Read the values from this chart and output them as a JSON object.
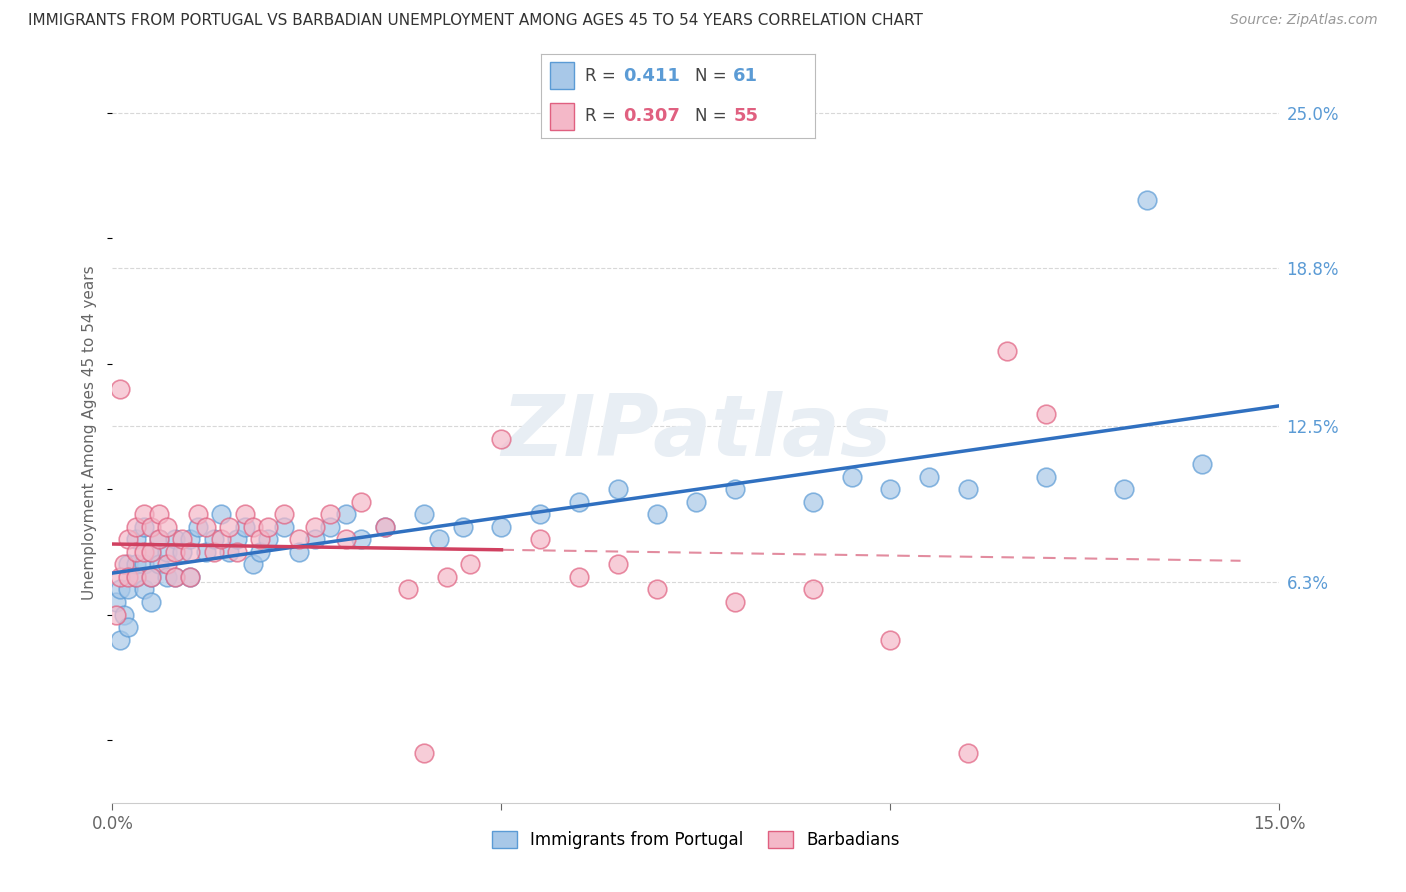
{
  "title": "IMMIGRANTS FROM PORTUGAL VS BARBADIAN UNEMPLOYMENT AMONG AGES 45 TO 54 YEARS CORRELATION CHART",
  "source": "Source: ZipAtlas.com",
  "ylabel": "Unemployment Among Ages 45 to 54 years",
  "xlim": [
    0.0,
    0.15
  ],
  "ylim": [
    -0.025,
    0.27
  ],
  "ytick_labels_right": [
    "25.0%",
    "18.8%",
    "12.5%",
    "6.3%"
  ],
  "ytick_vals_right": [
    0.25,
    0.188,
    0.125,
    0.063
  ],
  "R_blue": 0.411,
  "N_blue": 61,
  "R_pink": 0.307,
  "N_pink": 55,
  "blue_color": "#a8c8e8",
  "blue_edge_color": "#5b9bd5",
  "pink_color": "#f4b8c8",
  "pink_edge_color": "#e06080",
  "blue_line_color": "#3070c0",
  "pink_line_color": "#d04060",
  "watermark_color": "#e8eef4",
  "grid_color": "#d8d8d8",
  "blue_scatter_x": [
    0.0005,
    0.001,
    0.001,
    0.0015,
    0.002,
    0.002,
    0.002,
    0.003,
    0.003,
    0.003,
    0.004,
    0.004,
    0.004,
    0.005,
    0.005,
    0.005,
    0.006,
    0.006,
    0.007,
    0.007,
    0.008,
    0.008,
    0.009,
    0.01,
    0.01,
    0.011,
    0.012,
    0.013,
    0.014,
    0.015,
    0.016,
    0.017,
    0.018,
    0.019,
    0.02,
    0.022,
    0.024,
    0.026,
    0.028,
    0.03,
    0.032,
    0.035,
    0.04,
    0.042,
    0.045,
    0.05,
    0.055,
    0.06,
    0.065,
    0.07,
    0.075,
    0.08,
    0.09,
    0.095,
    0.1,
    0.105,
    0.11,
    0.12,
    0.13,
    0.133,
    0.14
  ],
  "blue_scatter_y": [
    0.055,
    0.04,
    0.06,
    0.05,
    0.07,
    0.045,
    0.06,
    0.065,
    0.07,
    0.08,
    0.06,
    0.07,
    0.085,
    0.065,
    0.075,
    0.055,
    0.07,
    0.08,
    0.075,
    0.065,
    0.08,
    0.065,
    0.075,
    0.065,
    0.08,
    0.085,
    0.075,
    0.08,
    0.09,
    0.075,
    0.08,
    0.085,
    0.07,
    0.075,
    0.08,
    0.085,
    0.075,
    0.08,
    0.085,
    0.09,
    0.08,
    0.085,
    0.09,
    0.08,
    0.085,
    0.085,
    0.09,
    0.095,
    0.1,
    0.09,
    0.095,
    0.1,
    0.095,
    0.105,
    0.1,
    0.105,
    0.1,
    0.105,
    0.1,
    0.215,
    0.11
  ],
  "pink_scatter_x": [
    0.0005,
    0.001,
    0.001,
    0.0015,
    0.002,
    0.002,
    0.003,
    0.003,
    0.003,
    0.004,
    0.004,
    0.005,
    0.005,
    0.005,
    0.006,
    0.006,
    0.007,
    0.007,
    0.008,
    0.008,
    0.009,
    0.01,
    0.01,
    0.011,
    0.012,
    0.013,
    0.014,
    0.015,
    0.016,
    0.017,
    0.018,
    0.019,
    0.02,
    0.022,
    0.024,
    0.026,
    0.028,
    0.03,
    0.032,
    0.035,
    0.038,
    0.04,
    0.043,
    0.046,
    0.05,
    0.055,
    0.06,
    0.065,
    0.07,
    0.08,
    0.09,
    0.1,
    0.11,
    0.115,
    0.12
  ],
  "pink_scatter_y": [
    0.05,
    0.065,
    0.14,
    0.07,
    0.08,
    0.065,
    0.075,
    0.085,
    0.065,
    0.09,
    0.075,
    0.085,
    0.065,
    0.075,
    0.08,
    0.09,
    0.07,
    0.085,
    0.075,
    0.065,
    0.08,
    0.075,
    0.065,
    0.09,
    0.085,
    0.075,
    0.08,
    0.085,
    0.075,
    0.09,
    0.085,
    0.08,
    0.085,
    0.09,
    0.08,
    0.085,
    0.09,
    0.08,
    0.095,
    0.085,
    0.06,
    -0.005,
    0.065,
    0.07,
    0.12,
    0.08,
    0.065,
    0.07,
    0.06,
    0.055,
    0.06,
    0.04,
    -0.005,
    0.155,
    0.13
  ]
}
